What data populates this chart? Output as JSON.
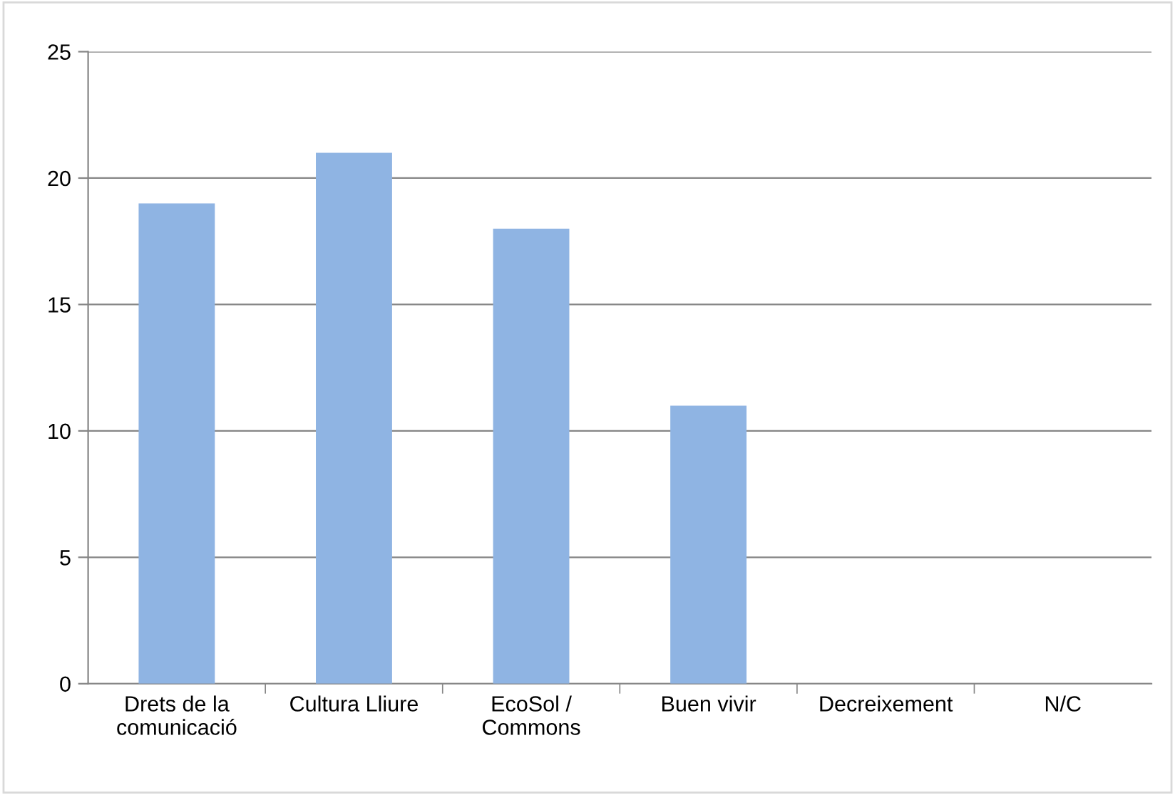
{
  "chart_data": {
    "type": "bar",
    "categories": [
      "Drets de la\ncomunicació",
      "Cultura Lliure",
      "EcoSol /\nCommons",
      "Buen vivir",
      "Decreixement",
      "N/C"
    ],
    "values": [
      19,
      21,
      18,
      11,
      0,
      0
    ],
    "color": "#8fb4e3",
    "ylim": [
      0,
      25
    ],
    "yticks": [
      0,
      5,
      10,
      15,
      20,
      25
    ],
    "grid": "y",
    "legend": false
  }
}
